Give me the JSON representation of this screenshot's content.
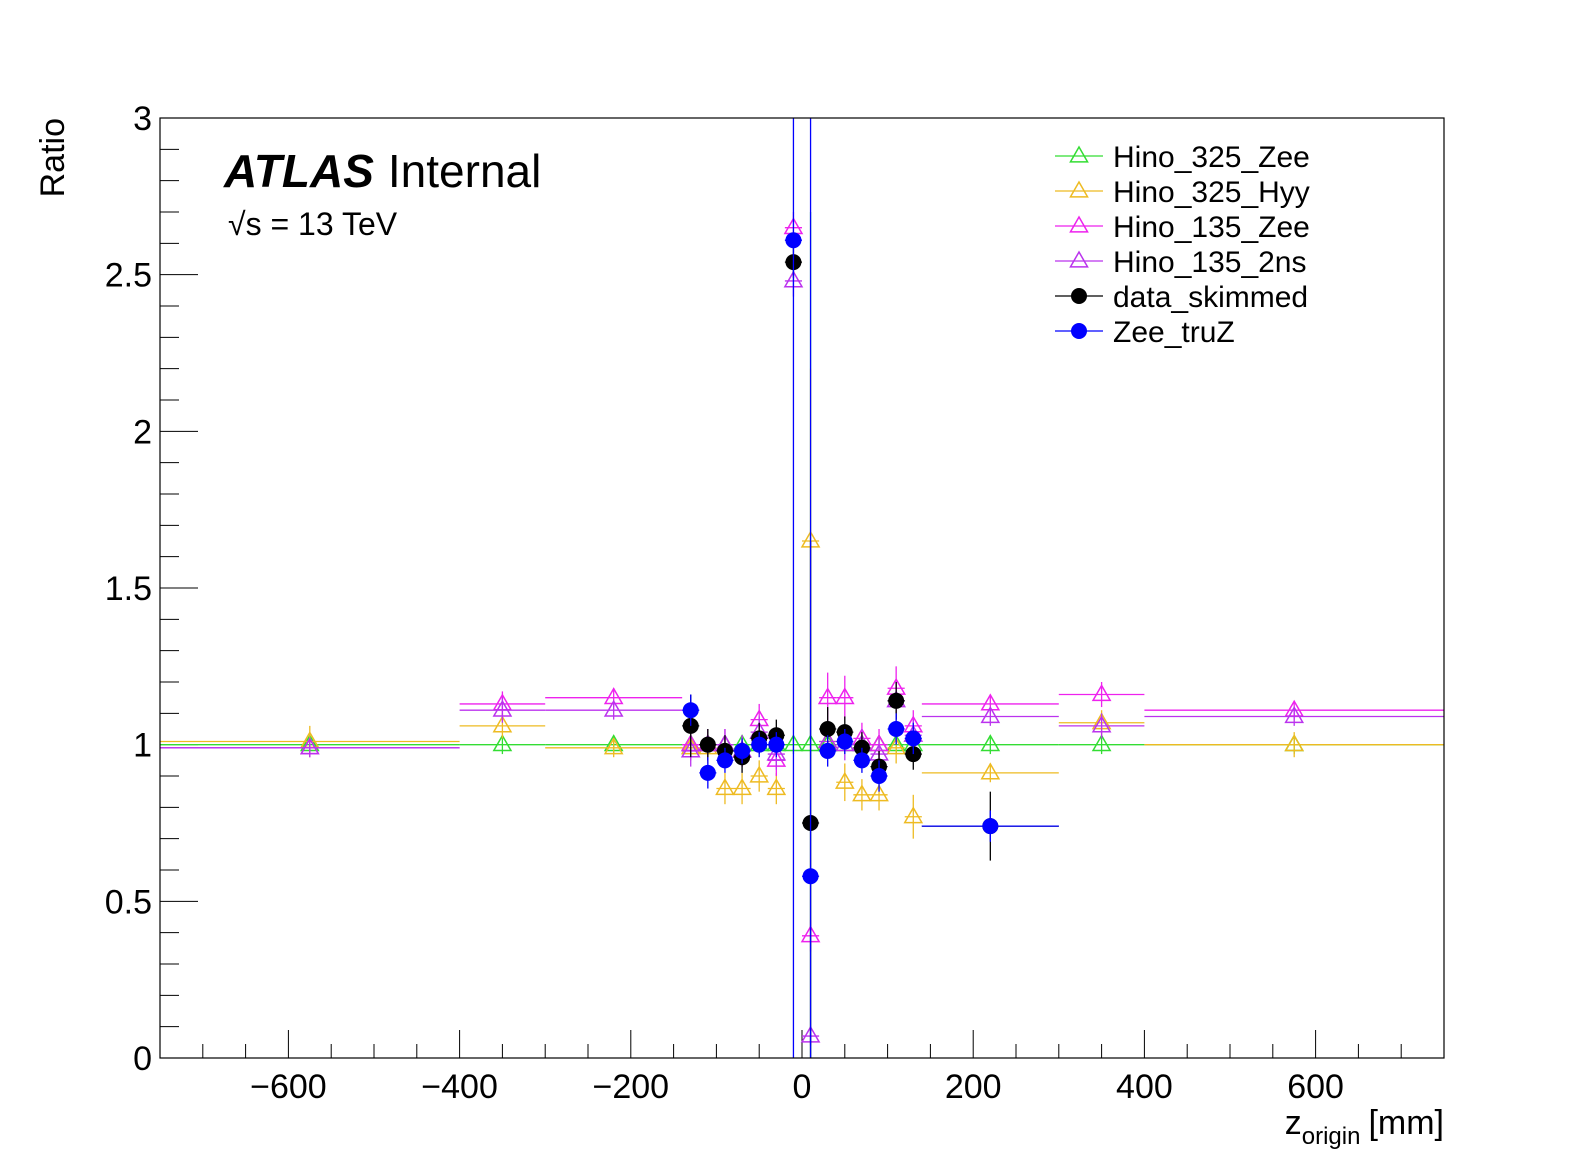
{
  "chart_data": {
    "type": "scatter",
    "xlabel": "z",
    "xlabel_subscript": "origin",
    "xlabel_unit": "[mm]",
    "ylabel": "Ratio",
    "xlim": [
      -750,
      750
    ],
    "ylim": [
      0,
      3
    ],
    "x_ticks": [
      -600,
      -400,
      -200,
      0,
      200,
      400,
      600
    ],
    "x_tick_labels": [
      "−600",
      "−400",
      "−200",
      "0",
      "200",
      "400",
      "600"
    ],
    "y_ticks": [
      0,
      0.5,
      1,
      1.5,
      2,
      2.5,
      3
    ],
    "y_tick_labels": [
      "0",
      "0.5",
      "1",
      "1.5",
      "2",
      "2.5",
      "3"
    ],
    "grid": false,
    "legend_position": "top-right",
    "atlas_label": "ATLAS",
    "atlas_sublabel": "Internal",
    "energy_sqrt": "√",
    "energy_label": "s = 13 TeV",
    "series": [
      {
        "name": "Hino_325_Zee",
        "color": "#33dd33",
        "marker": "open-triangle",
        "points": [
          {
            "x": -575,
            "xl": -750,
            "xh": -400,
            "y": 1.0,
            "e": 0.03
          },
          {
            "x": -350,
            "xl": -400,
            "xh": -300,
            "y": 1.0,
            "e": 0.03
          },
          {
            "x": -220,
            "xl": -300,
            "xh": -140,
            "y": 1.0,
            "e": 0.03
          },
          {
            "x": -130,
            "xl": -140,
            "xh": -120,
            "y": 1.0,
            "e": 0.03
          },
          {
            "x": -110,
            "xl": -120,
            "xh": -100,
            "y": 1.0,
            "e": 0.03
          },
          {
            "x": -90,
            "xl": -100,
            "xh": -80,
            "y": 1.0,
            "e": 0.03
          },
          {
            "x": -70,
            "xl": -80,
            "xh": -60,
            "y": 1.0,
            "e": 0.03
          },
          {
            "x": -50,
            "xl": -60,
            "xh": -40,
            "y": 1.0,
            "e": 0.03
          },
          {
            "x": -30,
            "xl": -40,
            "xh": -20,
            "y": 1.0,
            "e": 0.03
          },
          {
            "x": -10,
            "xl": -20,
            "xh": 0,
            "y": 1.0,
            "e": 0.03
          },
          {
            "x": 10,
            "xl": 0,
            "xh": 20,
            "y": 1.0,
            "e": 1.7
          },
          {
            "x": 30,
            "xl": 20,
            "xh": 40,
            "y": 1.0,
            "e": 0.03
          },
          {
            "x": 50,
            "xl": 40,
            "xh": 60,
            "y": 1.0,
            "e": 0.03
          },
          {
            "x": 70,
            "xl": 60,
            "xh": 80,
            "y": 1.0,
            "e": 0.03
          },
          {
            "x": 90,
            "xl": 80,
            "xh": 100,
            "y": 1.0,
            "e": 0.03
          },
          {
            "x": 110,
            "xl": 100,
            "xh": 120,
            "y": 1.0,
            "e": 0.03
          },
          {
            "x": 130,
            "xl": 120,
            "xh": 140,
            "y": 1.0,
            "e": 0.03
          },
          {
            "x": 220,
            "xl": 140,
            "xh": 300,
            "y": 1.0,
            "e": 0.03
          },
          {
            "x": 350,
            "xl": 300,
            "xh": 400,
            "y": 1.0,
            "e": 0.03
          },
          {
            "x": 575,
            "xl": 400,
            "xh": 750,
            "y": 1.0,
            "e": 0.03
          }
        ]
      },
      {
        "name": "Hino_325_Hyy",
        "color": "#eebb22",
        "marker": "open-triangle",
        "points": [
          {
            "x": -575,
            "xl": -750,
            "xh": -400,
            "y": 1.01,
            "e": 0.05
          },
          {
            "x": -350,
            "xl": -400,
            "xh": -300,
            "y": 1.06,
            "e": 0.04
          },
          {
            "x": -220,
            "xl": -300,
            "xh": -140,
            "y": 0.99,
            "e": 0.03
          },
          {
            "x": -130,
            "xl": -140,
            "xh": -120,
            "y": 0.99,
            "e": 0.04
          },
          {
            "x": -110,
            "xl": -120,
            "xh": -100,
            "y": 0.99,
            "e": 0.05
          },
          {
            "x": -90,
            "xl": -100,
            "xh": -80,
            "y": 0.86,
            "e": 0.05
          },
          {
            "x": -70,
            "xl": -80,
            "xh": -60,
            "y": 0.86,
            "e": 0.05
          },
          {
            "x": -50,
            "xl": -60,
            "xh": -40,
            "y": 0.9,
            "e": 0.05
          },
          {
            "x": -30,
            "xl": -40,
            "xh": -20,
            "y": 0.86,
            "e": 0.05
          },
          {
            "x": 10,
            "xl": 0,
            "xh": 20,
            "y": 1.65,
            "e": 0.55
          },
          {
            "x": 30,
            "xl": 20,
            "xh": 40,
            "y": 1.01,
            "e": 0.05
          },
          {
            "x": 50,
            "xl": 40,
            "xh": 60,
            "y": 0.88,
            "e": 0.06
          },
          {
            "x": 70,
            "xl": 60,
            "xh": 80,
            "y": 0.84,
            "e": 0.05
          },
          {
            "x": 90,
            "xl": 80,
            "xh": 100,
            "y": 0.84,
            "e": 0.05
          },
          {
            "x": 110,
            "xl": 100,
            "xh": 120,
            "y": 0.99,
            "e": 0.05
          },
          {
            "x": 130,
            "xl": 120,
            "xh": 140,
            "y": 0.77,
            "e": 0.07
          },
          {
            "x": 220,
            "xl": 140,
            "xh": 300,
            "y": 0.91,
            "e": 0.03
          },
          {
            "x": 350,
            "xl": 300,
            "xh": 400,
            "y": 1.07,
            "e": 0.04
          },
          {
            "x": 575,
            "xl": 400,
            "xh": 750,
            "y": 1.0,
            "e": 0.04
          }
        ]
      },
      {
        "name": "Hino_135_Zee",
        "color": "#ee22ee",
        "marker": "open-triangle",
        "points": [
          {
            "x": -575,
            "xl": -750,
            "xh": -400,
            "y": 0.99,
            "e": 0.03
          },
          {
            "x": -350,
            "xl": -400,
            "xh": -300,
            "y": 1.13,
            "e": 0.04
          },
          {
            "x": -220,
            "xl": -300,
            "xh": -140,
            "y": 1.15,
            "e": 0.03
          },
          {
            "x": -130,
            "xl": -140,
            "xh": -120,
            "y": 1.0,
            "e": 0.05
          },
          {
            "x": -110,
            "xl": -120,
            "xh": -100,
            "y": 1.0,
            "e": 0.05
          },
          {
            "x": -90,
            "xl": -100,
            "xh": -80,
            "y": 1.0,
            "e": 0.05
          },
          {
            "x": -70,
            "xl": -80,
            "xh": -60,
            "y": 0.98,
            "e": 0.05
          },
          {
            "x": -50,
            "xl": -60,
            "xh": -40,
            "y": 1.08,
            "e": 0.05
          },
          {
            "x": -30,
            "xl": -40,
            "xh": -20,
            "y": 0.95,
            "e": 0.05
          },
          {
            "x": -10,
            "xl": -20,
            "xh": 0,
            "y": 2.65,
            "e": 0.05
          },
          {
            "x": 10,
            "xl": 0,
            "xh": 20,
            "y": 0.39,
            "e": 0.05
          },
          {
            "x": 30,
            "xl": 20,
            "xh": 40,
            "y": 1.15,
            "e": 0.08
          },
          {
            "x": 50,
            "xl": 40,
            "xh": 60,
            "y": 1.15,
            "e": 0.07
          },
          {
            "x": 70,
            "xl": 60,
            "xh": 80,
            "y": 1.02,
            "e": 0.05
          },
          {
            "x": 90,
            "xl": 80,
            "xh": 100,
            "y": 1.0,
            "e": 0.05
          },
          {
            "x": 110,
            "xl": 100,
            "xh": 120,
            "y": 1.18,
            "e": 0.07
          },
          {
            "x": 130,
            "xl": 120,
            "xh": 140,
            "y": 1.06,
            "e": 0.05
          },
          {
            "x": 220,
            "xl": 140,
            "xh": 300,
            "y": 1.13,
            "e": 0.03
          },
          {
            "x": 350,
            "xl": 300,
            "xh": 400,
            "y": 1.16,
            "e": 0.04
          },
          {
            "x": 575,
            "xl": 400,
            "xh": 750,
            "y": 1.11,
            "e": 0.03
          }
        ]
      },
      {
        "name": "Hino_135_2ns",
        "color": "#bb33ee",
        "marker": "open-triangle",
        "points": [
          {
            "x": -575,
            "xl": -750,
            "xh": -400,
            "y": 0.99,
            "e": 0.03
          },
          {
            "x": -350,
            "xl": -400,
            "xh": -300,
            "y": 1.11,
            "e": 0.04
          },
          {
            "x": -220,
            "xl": -300,
            "xh": -140,
            "y": 1.11,
            "e": 0.03
          },
          {
            "x": -130,
            "xl": -140,
            "xh": -120,
            "y": 0.98,
            "e": 0.05
          },
          {
            "x": -110,
            "xl": -120,
            "xh": -100,
            "y": 1.0,
            "e": 0.05
          },
          {
            "x": -90,
            "xl": -100,
            "xh": -80,
            "y": 1.0,
            "e": 0.05
          },
          {
            "x": -70,
            "xl": -80,
            "xh": -60,
            "y": 0.98,
            "e": 0.05
          },
          {
            "x": -50,
            "xl": -60,
            "xh": -40,
            "y": 1.04,
            "e": 0.05
          },
          {
            "x": -30,
            "xl": -40,
            "xh": -20,
            "y": 0.97,
            "e": 0.05
          },
          {
            "x": -10,
            "xl": -20,
            "xh": 0,
            "y": 2.48,
            "e": 0.05
          },
          {
            "x": 10,
            "xl": 0,
            "xh": 20,
            "y": 0.07,
            "e": 0.03
          },
          {
            "x": 30,
            "xl": 20,
            "xh": 40,
            "y": 1.01,
            "e": 0.05
          },
          {
            "x": 50,
            "xl": 40,
            "xh": 60,
            "y": 1.0,
            "e": 0.05
          },
          {
            "x": 70,
            "xl": 60,
            "xh": 80,
            "y": 1.0,
            "e": 0.05
          },
          {
            "x": 90,
            "xl": 80,
            "xh": 100,
            "y": 0.97,
            "e": 0.05
          },
          {
            "x": 110,
            "xl": 100,
            "xh": 120,
            "y": 1.14,
            "e": 0.06
          },
          {
            "x": 130,
            "xl": 120,
            "xh": 140,
            "y": 1.03,
            "e": 0.05
          },
          {
            "x": 220,
            "xl": 140,
            "xh": 300,
            "y": 1.09,
            "e": 0.03
          },
          {
            "x": 350,
            "xl": 300,
            "xh": 400,
            "y": 1.06,
            "e": 0.04
          },
          {
            "x": 575,
            "xl": 400,
            "xh": 750,
            "y": 1.09,
            "e": 0.03
          }
        ]
      },
      {
        "name": "data_skimmed",
        "color": "#000000",
        "marker": "filled-circle",
        "points": [
          {
            "x": -130,
            "xl": -140,
            "xh": -120,
            "y": 1.06,
            "e": 0.1
          },
          {
            "x": -110,
            "xl": -120,
            "xh": -100,
            "y": 1.0,
            "e": 0.05
          },
          {
            "x": -90,
            "xl": -100,
            "xh": -80,
            "y": 0.98,
            "e": 0.05
          },
          {
            "x": -70,
            "xl": -80,
            "xh": -60,
            "y": 0.96,
            "e": 0.05
          },
          {
            "x": -50,
            "xl": -60,
            "xh": -40,
            "y": 1.02,
            "e": 0.05
          },
          {
            "x": -30,
            "xl": -40,
            "xh": -20,
            "y": 1.03,
            "e": 0.05
          },
          {
            "x": -10,
            "xl": -20,
            "xh": 0,
            "y": 2.54,
            "e": 0.05
          },
          {
            "x": 10,
            "xl": 0,
            "xh": 20,
            "y": 0.75,
            "e": 0.9
          },
          {
            "x": 30,
            "xl": 20,
            "xh": 40,
            "y": 1.05,
            "e": 0.07
          },
          {
            "x": 50,
            "xl": 40,
            "xh": 60,
            "y": 1.04,
            "e": 0.05
          },
          {
            "x": 70,
            "xl": 60,
            "xh": 80,
            "y": 0.99,
            "e": 0.05
          },
          {
            "x": 90,
            "xl": 80,
            "xh": 100,
            "y": 0.93,
            "e": 0.05
          },
          {
            "x": 110,
            "xl": 100,
            "xh": 120,
            "y": 1.14,
            "e": 0.06
          },
          {
            "x": 130,
            "xl": 120,
            "xh": 140,
            "y": 0.97,
            "e": 0.05
          },
          {
            "x": 220,
            "xl": 140,
            "xh": 300,
            "y": 0.74,
            "e": 0.11
          }
        ]
      },
      {
        "name": "Zee_truZ",
        "color": "#0000ff",
        "marker": "filled-circle",
        "points": [
          {
            "x": -130,
            "xl": -140,
            "xh": -120,
            "y": 1.11,
            "e": 0.05
          },
          {
            "x": -110,
            "xl": -120,
            "xh": -100,
            "y": 0.91,
            "e": 0.05
          },
          {
            "x": -90,
            "xl": -100,
            "xh": -80,
            "y": 0.95,
            "e": 0.04
          },
          {
            "x": -70,
            "xl": -80,
            "xh": -60,
            "y": 0.98,
            "e": 0.04
          },
          {
            "x": -50,
            "xl": -60,
            "xh": -40,
            "y": 1.0,
            "e": 0.04
          },
          {
            "x": -30,
            "xl": -40,
            "xh": -20,
            "y": 1.0,
            "e": 0.04
          },
          {
            "x": -10,
            "xl": -20,
            "xh": 0,
            "y": 2.61,
            "e": 2.61
          },
          {
            "x": 10,
            "xl": 0,
            "xh": 20,
            "y": 0.58,
            "e": 2.42
          },
          {
            "x": 30,
            "xl": 20,
            "xh": 40,
            "y": 0.98,
            "e": 0.05
          },
          {
            "x": 50,
            "xl": 40,
            "xh": 60,
            "y": 1.01,
            "e": 0.04
          },
          {
            "x": 70,
            "xl": 60,
            "xh": 80,
            "y": 0.95,
            "e": 0.04
          },
          {
            "x": 90,
            "xl": 80,
            "xh": 100,
            "y": 0.9,
            "e": 0.05
          },
          {
            "x": 110,
            "xl": 100,
            "xh": 120,
            "y": 1.05,
            "e": 0.05
          },
          {
            "x": 130,
            "xl": 120,
            "xh": 140,
            "y": 1.02,
            "e": 0.05
          },
          {
            "x": 220,
            "xl": 140,
            "xh": 300,
            "y": 0.74,
            "e": 0.05
          }
        ]
      }
    ]
  }
}
